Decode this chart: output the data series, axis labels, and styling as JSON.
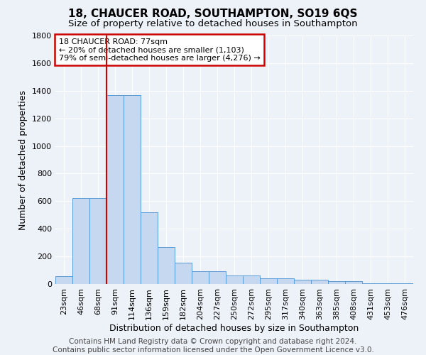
{
  "title": "18, CHAUCER ROAD, SOUTHAMPTON, SO19 6QS",
  "subtitle": "Size of property relative to detached houses in Southampton",
  "xlabel": "Distribution of detached houses by size in Southampton",
  "ylabel": "Number of detached properties",
  "footer_line1": "Contains HM Land Registry data © Crown copyright and database right 2024.",
  "footer_line2": "Contains public sector information licensed under the Open Government Licence v3.0.",
  "annotation_title": "18 CHAUCER ROAD: 77sqm",
  "annotation_line1": "← 20% of detached houses are smaller (1,103)",
  "annotation_line2": "79% of semi-detached houses are larger (4,276) →",
  "bar_categories": [
    "23sqm",
    "46sqm",
    "68sqm",
    "91sqm",
    "114sqm",
    "136sqm",
    "159sqm",
    "182sqm",
    "204sqm",
    "227sqm",
    "250sqm",
    "272sqm",
    "295sqm",
    "317sqm",
    "340sqm",
    "363sqm",
    "385sqm",
    "408sqm",
    "431sqm",
    "453sqm",
    "476sqm"
  ],
  "bar_values": [
    55,
    620,
    620,
    1370,
    1370,
    520,
    265,
    155,
    95,
    95,
    60,
    60,
    40,
    40,
    30,
    30,
    20,
    20,
    5,
    5,
    5
  ],
  "bar_color": "#c5d8f0",
  "bar_edge_color": "#5b9bd5",
  "vline_color": "#cc0000",
  "vline_x_index": 2.5,
  "annotation_box_color": "#cc0000",
  "ylim": [
    0,
    1800
  ],
  "yticks": [
    0,
    200,
    400,
    600,
    800,
    1000,
    1200,
    1400,
    1600,
    1800
  ],
  "background_color": "#edf2f9",
  "grid_color": "#ffffff",
  "title_fontsize": 11,
  "subtitle_fontsize": 9.5,
  "axis_label_fontsize": 9,
  "tick_fontsize": 8,
  "annotation_fontsize": 8,
  "footer_fontsize": 7.5
}
